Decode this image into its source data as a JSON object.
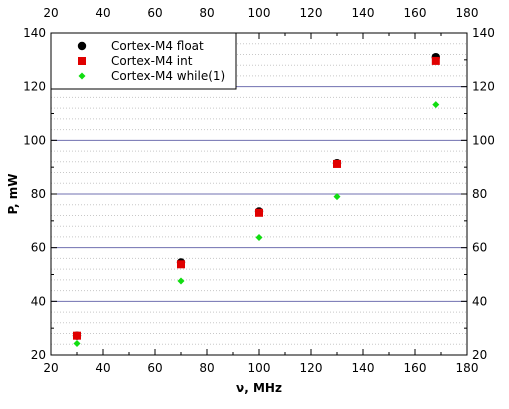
{
  "chart_data": {
    "type": "scatter",
    "title": "",
    "xlabel": "ν, MHz",
    "ylabel": "P, mW",
    "xlim": [
      20,
      180
    ],
    "ylim": [
      20,
      140
    ],
    "x_ticks": [
      20,
      40,
      60,
      80,
      100,
      120,
      140,
      160,
      180
    ],
    "y_ticks": [
      20,
      40,
      60,
      80,
      100,
      120,
      140
    ],
    "major_grid_y": [
      40,
      60,
      80,
      100,
      120
    ],
    "minor_grid_y_step": 4,
    "legend_position": "top-left",
    "series": [
      {
        "name": "Cortex-M4 float",
        "marker": "circle",
        "color": "#000000",
        "points": [
          {
            "x": 30,
            "y": 27.2
          },
          {
            "x": 70,
            "y": 54.5
          },
          {
            "x": 100,
            "y": 73.5
          },
          {
            "x": 130,
            "y": 91.5
          },
          {
            "x": 168,
            "y": 131
          }
        ]
      },
      {
        "name": "Cortex-M4 int",
        "marker": "square",
        "color": "#e00000",
        "points": [
          {
            "x": 30,
            "y": 27.2
          },
          {
            "x": 70,
            "y": 53.8
          },
          {
            "x": 100,
            "y": 73
          },
          {
            "x": 130,
            "y": 91.2
          },
          {
            "x": 168,
            "y": 129.6
          }
        ]
      },
      {
        "name": "Cortex-M4 while(1)",
        "marker": "diamond",
        "color": "#11dd11",
        "points": [
          {
            "x": 30,
            "y": 24.3
          },
          {
            "x": 70,
            "y": 47.6
          },
          {
            "x": 100,
            "y": 63.8
          },
          {
            "x": 130,
            "y": 79
          },
          {
            "x": 168,
            "y": 113.3
          }
        ]
      }
    ]
  }
}
